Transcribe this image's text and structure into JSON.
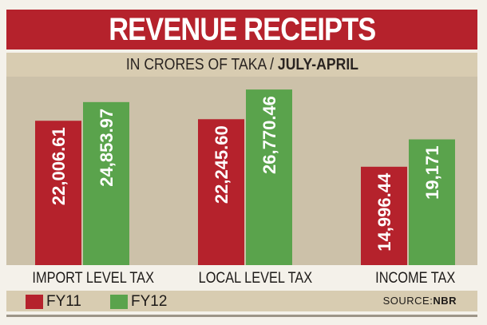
{
  "header": {
    "title": "REVENUE RECEIPTS",
    "subtitle_prefix": "IN CRORES OF TAKA / ",
    "subtitle_period": "JULY-APRIL"
  },
  "legend": {
    "fy11": "FY11",
    "fy12": "FY12"
  },
  "source": {
    "prefix": "SOURCE:",
    "name": "NBR"
  },
  "colors": {
    "fy11": "#b5222c",
    "fy12": "#5aa34c"
  },
  "chart_data": {
    "type": "bar",
    "title": "REVENUE RECEIPTS",
    "subtitle": "IN CRORES OF TAKA / JULY-APRIL",
    "categories": [
      "IMPORT LEVEL TAX",
      "LOCAL LEVEL TAX",
      "INCOME TAX"
    ],
    "series": [
      {
        "name": "FY11",
        "values": [
          22006.61,
          22245.6,
          14996.44
        ],
        "labels": [
          "22,006.61",
          "22,245.60",
          "14,996.44"
        ]
      },
      {
        "name": "FY12",
        "values": [
          24853.97,
          26770.46,
          19171
        ],
        "labels": [
          "24,853.97",
          "26,770.46",
          "19,171"
        ]
      }
    ],
    "ylim": [
      0,
      28000
    ],
    "grid": false,
    "legend_position": "bottom-left"
  }
}
